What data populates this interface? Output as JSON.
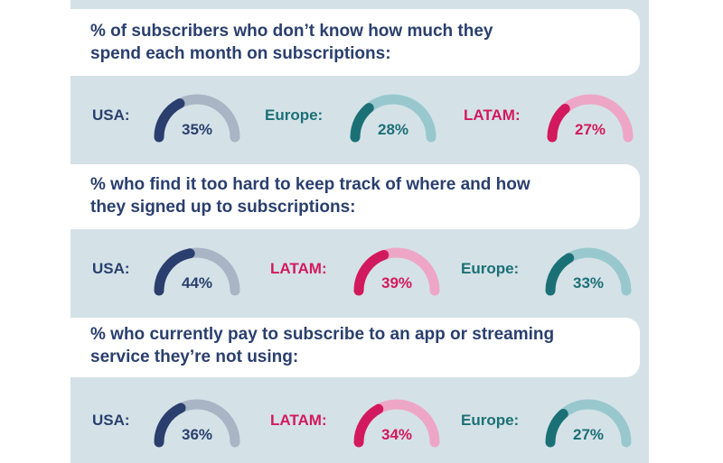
{
  "colors": {
    "band": "#d4e2e7",
    "heading": "#2a3f6e",
    "USA": {
      "main": "#2a3f6e",
      "light": "#a9b4c4"
    },
    "Europe": {
      "main": "#1b7076",
      "light": "#98c8ce"
    },
    "LATAM": {
      "main": "#d3195e",
      "light": "#eea6c6"
    }
  },
  "chart_data": {
    "type": "gauge",
    "unit": "%",
    "panels": [
      {
        "title": "% of subscribers who don’t know how much they\nspend each month on subscriptions:",
        "items": [
          {
            "region": "USA",
            "region_label": "USA:",
            "value": 35,
            "label": "35%"
          },
          {
            "region": "Europe",
            "region_label": "Europe:",
            "value": 28,
            "label": "28%"
          },
          {
            "region": "LATAM",
            "region_label": "LATAM:",
            "value": 27,
            "label": "27%"
          }
        ]
      },
      {
        "title": "% who find it too hard to keep track of where and how\nthey signed up to subscriptions:",
        "items": [
          {
            "region": "USA",
            "region_label": "USA:",
            "value": 44,
            "label": "44%"
          },
          {
            "region": "LATAM",
            "region_label": "LATAM:",
            "value": 39,
            "label": "39%"
          },
          {
            "region": "Europe",
            "region_label": "Europe:",
            "value": 33,
            "label": "33%"
          }
        ]
      },
      {
        "title": "% who currently pay to subscribe to an app or streaming\nservice they’re not using:",
        "items": [
          {
            "region": "USA",
            "region_label": "USA:",
            "value": 36,
            "label": "36%"
          },
          {
            "region": "LATAM",
            "region_label": "LATAM:",
            "value": 34,
            "label": "34%"
          },
          {
            "region": "Europe",
            "region_label": "Europe:",
            "value": 27,
            "label": "27%"
          }
        ]
      }
    ]
  }
}
